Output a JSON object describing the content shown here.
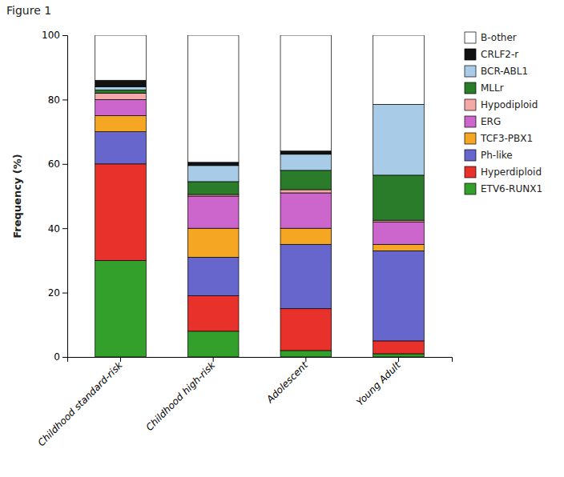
{
  "chart_data": {
    "type": "bar",
    "stacked": true,
    "title": "Figure 1",
    "categories": [
      "Childhood standard-risk",
      "Childhood high-risk",
      "Adolescent",
      "Young Adult"
    ],
    "series": [
      {
        "name": "ETV6-RUNX1",
        "color": "#33a02c",
        "values": [
          30,
          8,
          2,
          1
        ]
      },
      {
        "name": "Hyperdiploid",
        "color": "#e8312a",
        "values": [
          30,
          11,
          13,
          4
        ]
      },
      {
        "name": "Ph-like",
        "color": "#6666cc",
        "values": [
          10,
          12,
          20,
          28
        ]
      },
      {
        "name": "TCF3-PBX1",
        "color": "#f5a623",
        "values": [
          5,
          9,
          5,
          2
        ]
      },
      {
        "name": "ERG",
        "color": "#cc66cc",
        "values": [
          5,
          10,
          11,
          7
        ]
      },
      {
        "name": "Hypodiploid",
        "color": "#f4a9a8",
        "values": [
          2,
          0.5,
          1,
          0.5
        ]
      },
      {
        "name": "MLLr",
        "color": "#2a7b2a",
        "values": [
          1,
          4,
          6,
          14
        ]
      },
      {
        "name": "BCR-ABL1",
        "color": "#a8cce8",
        "values": [
          1,
          5,
          5,
          22
        ]
      },
      {
        "name": "CRLF2-r",
        "color": "#111111",
        "values": [
          2,
          1,
          1,
          0
        ]
      },
      {
        "name": "B-other",
        "color": "#ffffff",
        "values": [
          14,
          39.5,
          36,
          21.5
        ]
      }
    ],
    "ylabel": "Frequency (%)",
    "ylim": [
      0,
      100
    ],
    "yticks": [
      0,
      20,
      40,
      60,
      80,
      100
    ],
    "legend": "right",
    "grid": false
  }
}
